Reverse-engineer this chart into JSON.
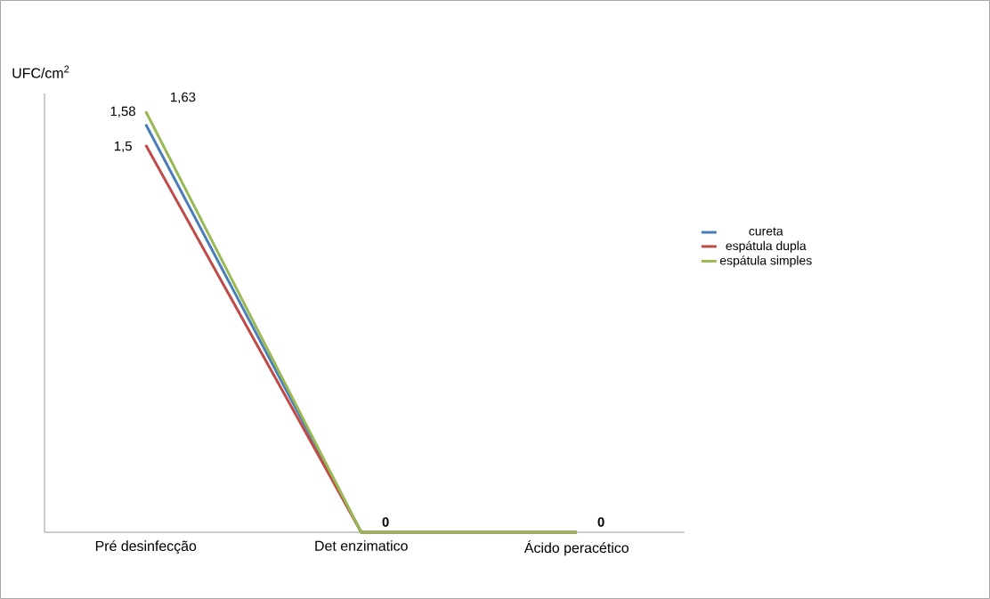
{
  "chart_data": {
    "type": "line",
    "ylabel": "UFC/cm$^{2}$",
    "categories": [
      "Pré desinfecção",
      "Det enzimatico",
      "Ácido peracético"
    ],
    "series": [
      {
        "name": "cureta",
        "color": "#4a7ebb",
        "values": [
          1.58,
          0,
          0
        ],
        "value_labels": [
          "1,58",
          null,
          null
        ]
      },
      {
        "name": "espátula dupla",
        "color": "#be4b48",
        "values": [
          1.5,
          0,
          0
        ],
        "value_labels": [
          "1,5",
          null,
          null
        ]
      },
      {
        "name": "espátula simples",
        "color": "#98b954",
        "values": [
          1.63,
          0,
          0
        ],
        "value_labels": [
          "1,63",
          "0",
          "0"
        ]
      }
    ],
    "ylim": [
      0,
      1.7
    ],
    "legend": "right",
    "grid": false
  }
}
